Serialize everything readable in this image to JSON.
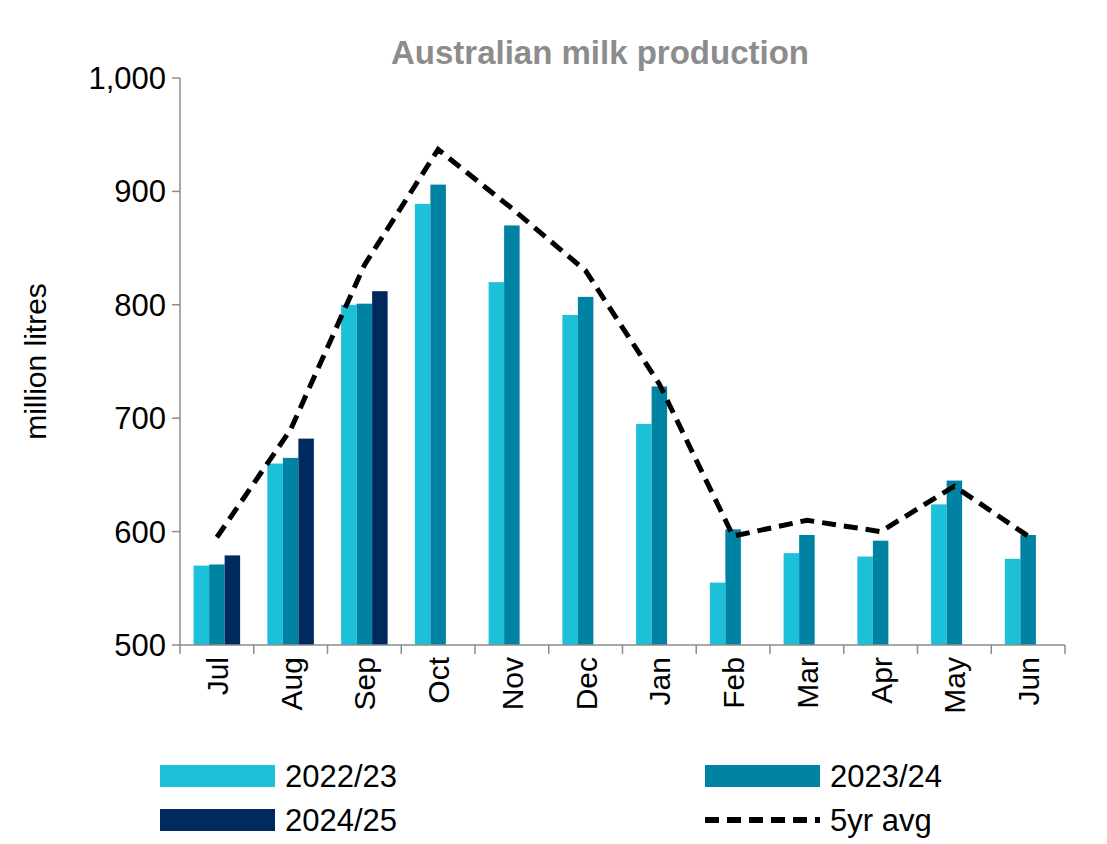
{
  "chart_data": {
    "type": "bar",
    "title": "Australian milk production",
    "y_label": "million litres",
    "categories": [
      "Jul",
      "Aug",
      "Sep",
      "Oct",
      "Nov",
      "Dec",
      "Jan",
      "Feb",
      "Mar",
      "Apr",
      "May",
      "Jun"
    ],
    "series": [
      {
        "name": "2022/23",
        "type": "bar",
        "color": "#1cc0d8",
        "values": [
          570,
          660,
          800,
          889,
          820,
          791,
          695,
          555,
          581,
          578,
          624,
          576
        ]
      },
      {
        "name": "2023/24",
        "type": "bar",
        "color": "#0082a3",
        "values": [
          571,
          665,
          801,
          906,
          870,
          807,
          728,
          602,
          597,
          592,
          645,
          597
        ]
      },
      {
        "name": "2024/25",
        "type": "bar",
        "color": "#002a5e",
        "values": [
          579,
          682,
          812,
          null,
          null,
          null,
          null,
          null,
          null,
          null,
          null,
          null
        ]
      },
      {
        "name": "5yr avg",
        "type": "line",
        "color": "#000000",
        "line_style": "dashed",
        "values": [
          595,
          690,
          835,
          937,
          885,
          830,
          730,
          596,
          610,
          600,
          640,
          596
        ]
      }
    ],
    "ylim": [
      500,
      1000
    ],
    "yticks": [
      500,
      600,
      700,
      800,
      900,
      {
        "value": 1000,
        "label": "1,000"
      }
    ],
    "grid": false,
    "legend": "bottom"
  }
}
